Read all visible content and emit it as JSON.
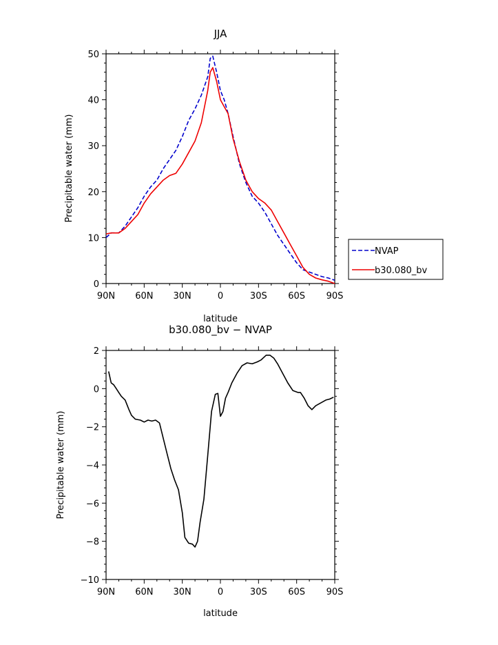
{
  "chart_data": [
    {
      "type": "line",
      "title": "JJA",
      "xlabel": "latitude",
      "ylabel": "Precipitable water (mm)",
      "xlim": [
        90,
        -90
      ],
      "ylim": [
        0,
        50
      ],
      "x_ticks": [
        90,
        60,
        30,
        0,
        -30,
        -60,
        -90
      ],
      "x_tick_labels": [
        "90N",
        "60N",
        "30N",
        "0",
        "30S",
        "60S",
        "90S"
      ],
      "y_ticks": [
        0,
        10,
        20,
        30,
        40,
        50
      ],
      "y_tick_labels": [
        "0",
        "10",
        "20",
        "30",
        "40",
        "50"
      ],
      "legend_placement": "right",
      "series": [
        {
          "name": "NVAP",
          "color": "#0000cc",
          "dash": "dashed",
          "x": [
            90,
            86,
            80,
            75,
            70,
            65,
            60,
            55,
            50,
            45,
            40,
            35,
            30,
            25,
            20,
            15,
            10,
            8,
            6,
            3,
            0,
            -3,
            -6,
            -10,
            -15,
            -20,
            -25,
            -30,
            -35,
            -40,
            -45,
            -50,
            -55,
            -60,
            -65,
            -70,
            -75,
            -80,
            -85,
            -90
          ],
          "values": [
            10,
            11,
            11,
            12.5,
            14.5,
            16.5,
            19,
            21,
            22.5,
            25,
            27,
            29,
            32,
            35.5,
            38,
            41,
            45,
            49,
            49.5,
            46,
            42,
            40,
            37,
            32,
            26,
            22,
            19,
            17.5,
            15.5,
            13,
            10.5,
            8.5,
            6.5,
            4.5,
            3,
            2.5,
            2,
            1.5,
            1.2,
            0.7
          ]
        },
        {
          "name": "b30.080_bv",
          "color": "#ee0000",
          "dash": "solid",
          "x": [
            90,
            86,
            80,
            75,
            70,
            65,
            60,
            55,
            50,
            45,
            40,
            35,
            30,
            25,
            20,
            15,
            10,
            8,
            6,
            3,
            0,
            -3,
            -6,
            -10,
            -15,
            -20,
            -25,
            -30,
            -35,
            -40,
            -45,
            -50,
            -55,
            -60,
            -65,
            -70,
            -75,
            -80,
            -85,
            -90
          ],
          "values": [
            10.8,
            11,
            11,
            12,
            13.5,
            15,
            17.5,
            19.5,
            21,
            22.5,
            23.5,
            24,
            26,
            28.5,
            31,
            35,
            42,
            46,
            47,
            44,
            40,
            38.5,
            37,
            31.5,
            26.5,
            22.5,
            20,
            18.5,
            17.5,
            16,
            13.5,
            11,
            8.5,
            6,
            3.5,
            2,
            1.2,
            0.8,
            0.5,
            0
          ]
        }
      ]
    },
    {
      "type": "line",
      "title": "b30.080_bv − NVAP",
      "xlabel": "latitude",
      "ylabel": "Precipitable water (mm)",
      "xlim": [
        90,
        -90
      ],
      "ylim": [
        -10,
        2
      ],
      "x_ticks": [
        90,
        60,
        30,
        0,
        -30,
        -60,
        -90
      ],
      "x_tick_labels": [
        "90N",
        "60N",
        "30N",
        "0",
        "30S",
        "60S",
        "90S"
      ],
      "y_ticks": [
        -10,
        -8,
        -6,
        -4,
        -2,
        0,
        2
      ],
      "y_tick_labels": [
        "−10",
        "−8",
        "−6",
        "−4",
        "−2",
        "0",
        "2"
      ],
      "series": [
        {
          "color": "#000000",
          "dash": "solid",
          "x": [
            88,
            86,
            84,
            82,
            80,
            78,
            75,
            72,
            70,
            67,
            63,
            60,
            57,
            54,
            51,
            48,
            45,
            42,
            39,
            36,
            33,
            30,
            28,
            25,
            22,
            20,
            18,
            16,
            13,
            10,
            7,
            4,
            2,
            0,
            -2,
            -4,
            -6,
            -9,
            -13,
            -17,
            -21,
            -25,
            -29,
            -32,
            -36,
            -39,
            -42,
            -45,
            -49,
            -53,
            -57,
            -61,
            -63,
            -66,
            -69,
            -72,
            -75,
            -79,
            -83,
            -86,
            -89
          ],
          "values": [
            0.9,
            0.3,
            0.2,
            0,
            -0.2,
            -0.4,
            -0.6,
            -1.1,
            -1.4,
            -1.6,
            -1.65,
            -1.75,
            -1.65,
            -1.7,
            -1.65,
            -1.8,
            -2.6,
            -3.4,
            -4.2,
            -4.8,
            -5.3,
            -6.5,
            -7.8,
            -8.1,
            -8.15,
            -8.3,
            -8.0,
            -7.0,
            -5.8,
            -3.5,
            -1.2,
            -0.3,
            -0.25,
            -1.45,
            -1.2,
            -0.5,
            -0.2,
            0.3,
            0.8,
            1.2,
            1.35,
            1.3,
            1.4,
            1.5,
            1.75,
            1.75,
            1.6,
            1.3,
            0.8,
            0.3,
            -0.1,
            -0.2,
            -0.2,
            -0.5,
            -0.9,
            -1.1,
            -0.9,
            -0.75,
            -0.6,
            -0.55,
            -0.45
          ]
        }
      ]
    }
  ]
}
